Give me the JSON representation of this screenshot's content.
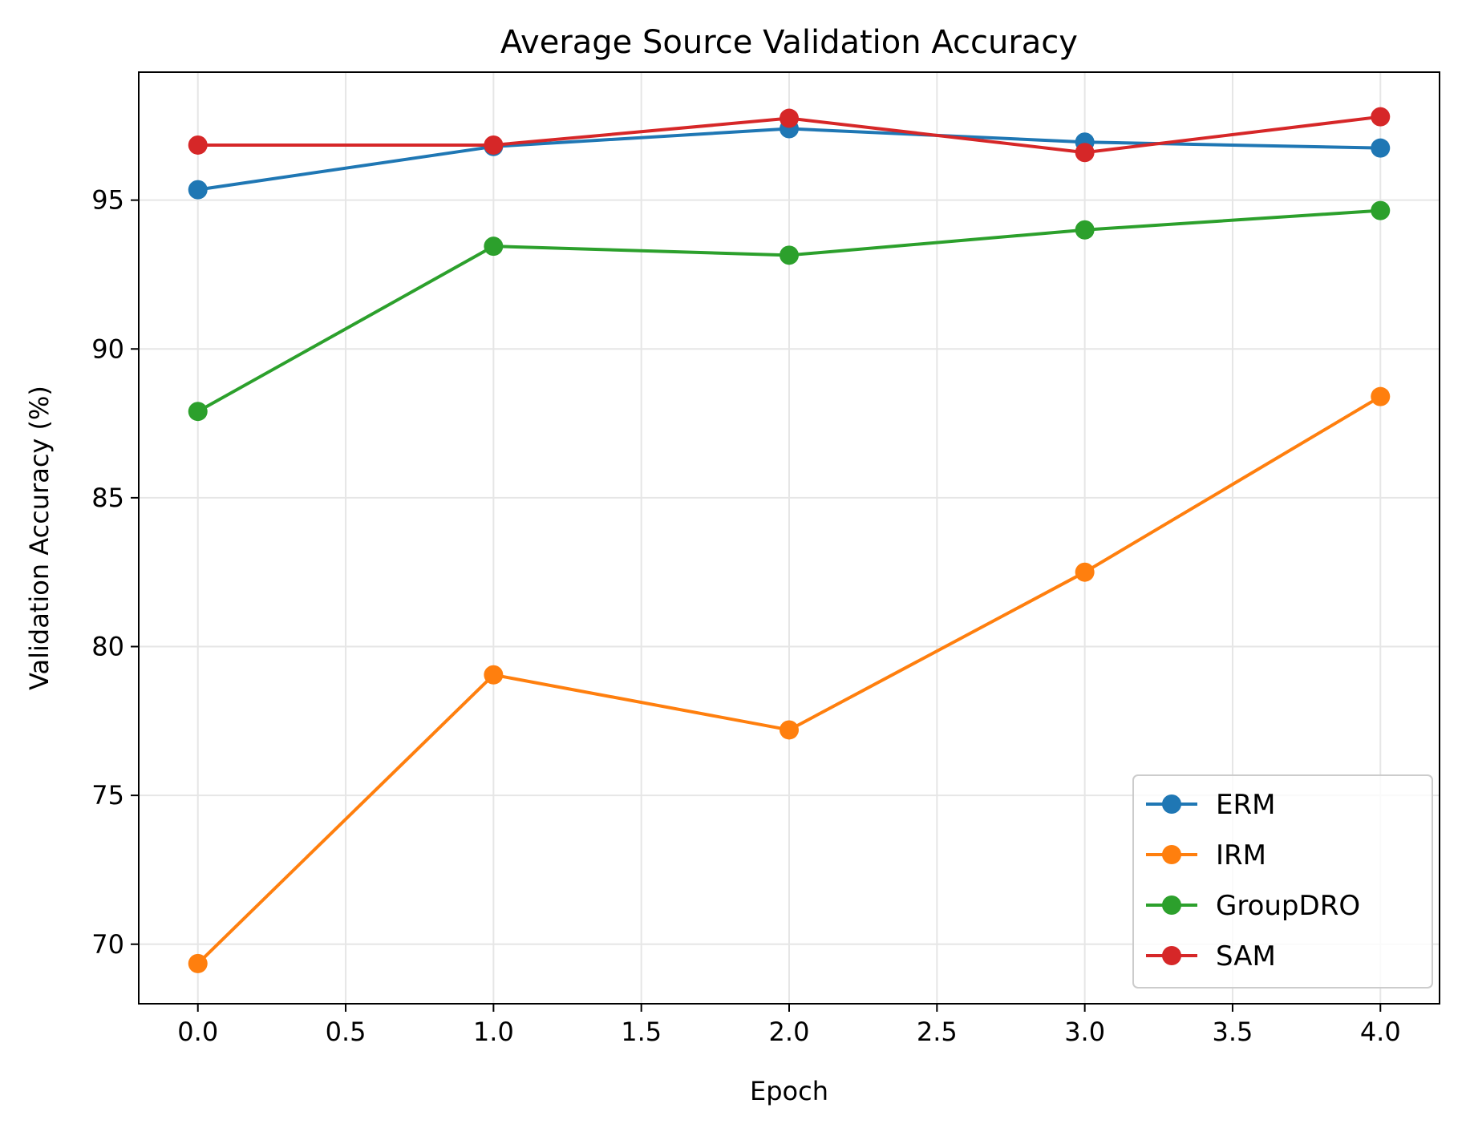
{
  "chart_data": {
    "type": "line",
    "title": "Average Source Validation Accuracy",
    "xlabel": "Epoch",
    "ylabel": "Validation Accuracy (%)",
    "x": [
      0,
      1,
      2,
      3,
      4
    ],
    "xlim": [
      -0.2,
      4.2
    ],
    "ylim": [
      68.0,
      99.3
    ],
    "xticks": [
      "0.0",
      "0.5",
      "1.0",
      "1.5",
      "2.0",
      "2.5",
      "3.0",
      "3.5",
      "4.0"
    ],
    "yticks": [
      "70",
      "75",
      "80",
      "85",
      "90",
      "95"
    ],
    "grid": true,
    "legend_position": "lower-right",
    "series": [
      {
        "name": "ERM",
        "color": "#1f77b4",
        "values": [
          95.35,
          96.8,
          97.4,
          96.95,
          96.75
        ]
      },
      {
        "name": "IRM",
        "color": "#ff7f0e",
        "values": [
          69.35,
          79.05,
          77.2,
          82.5,
          88.4
        ]
      },
      {
        "name": "GroupDRO",
        "color": "#2ca02c",
        "values": [
          87.9,
          93.45,
          93.15,
          94.0,
          94.65
        ]
      },
      {
        "name": "SAM",
        "color": "#d62728",
        "values": [
          96.85,
          96.85,
          97.75,
          96.6,
          97.8
        ]
      }
    ]
  }
}
